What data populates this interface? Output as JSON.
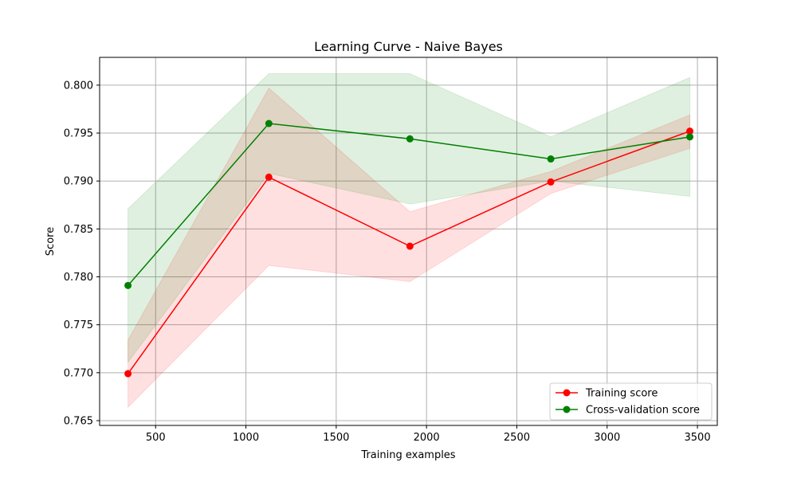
{
  "chart_data": {
    "type": "line",
    "title": "Learning Curve - Naive Bayes",
    "xlabel": "Training examples",
    "ylabel": "Score",
    "xlim": [
      190,
      3610
    ],
    "ylim": [
      0.7645,
      0.8029
    ],
    "xticks": [
      500,
      1000,
      1500,
      2000,
      2500,
      3000,
      3500
    ],
    "xtick_labels": [
      "500",
      "1000",
      "1500",
      "2000",
      "2500",
      "3000",
      "3500"
    ],
    "yticks": [
      0.765,
      0.77,
      0.775,
      0.78,
      0.785,
      0.79,
      0.795,
      0.8
    ],
    "ytick_labels": [
      "0.765",
      "0.770",
      "0.775",
      "0.780",
      "0.785",
      "0.790",
      "0.795",
      "0.800"
    ],
    "grid": true,
    "legend_position": "lower-right",
    "x": [
      347,
      1127,
      1908,
      2688,
      3458
    ],
    "series": [
      {
        "name": "Training score",
        "color": "#ff0000",
        "marker": "circle",
        "values": [
          0.7699,
          0.7904,
          0.7832,
          0.7899,
          0.7952
        ],
        "band_lower": [
          0.7664,
          0.7812,
          0.7795,
          0.7887,
          0.7934
        ],
        "band_upper": [
          0.7734,
          0.7997,
          0.7868,
          0.791,
          0.7969
        ],
        "band_color": "#ff0000",
        "band_opacity": 0.12
      },
      {
        "name": "Cross-validation score",
        "color": "#008000",
        "marker": "circle",
        "values": [
          0.7791,
          0.796,
          0.7944,
          0.7923,
          0.7946
        ],
        "band_lower": [
          0.7711,
          0.7908,
          0.7876,
          0.79,
          0.7884
        ],
        "band_upper": [
          0.7871,
          0.8012,
          0.8012,
          0.7946,
          0.8008
        ],
        "band_color": "#008000",
        "band_opacity": 0.12
      }
    ]
  }
}
